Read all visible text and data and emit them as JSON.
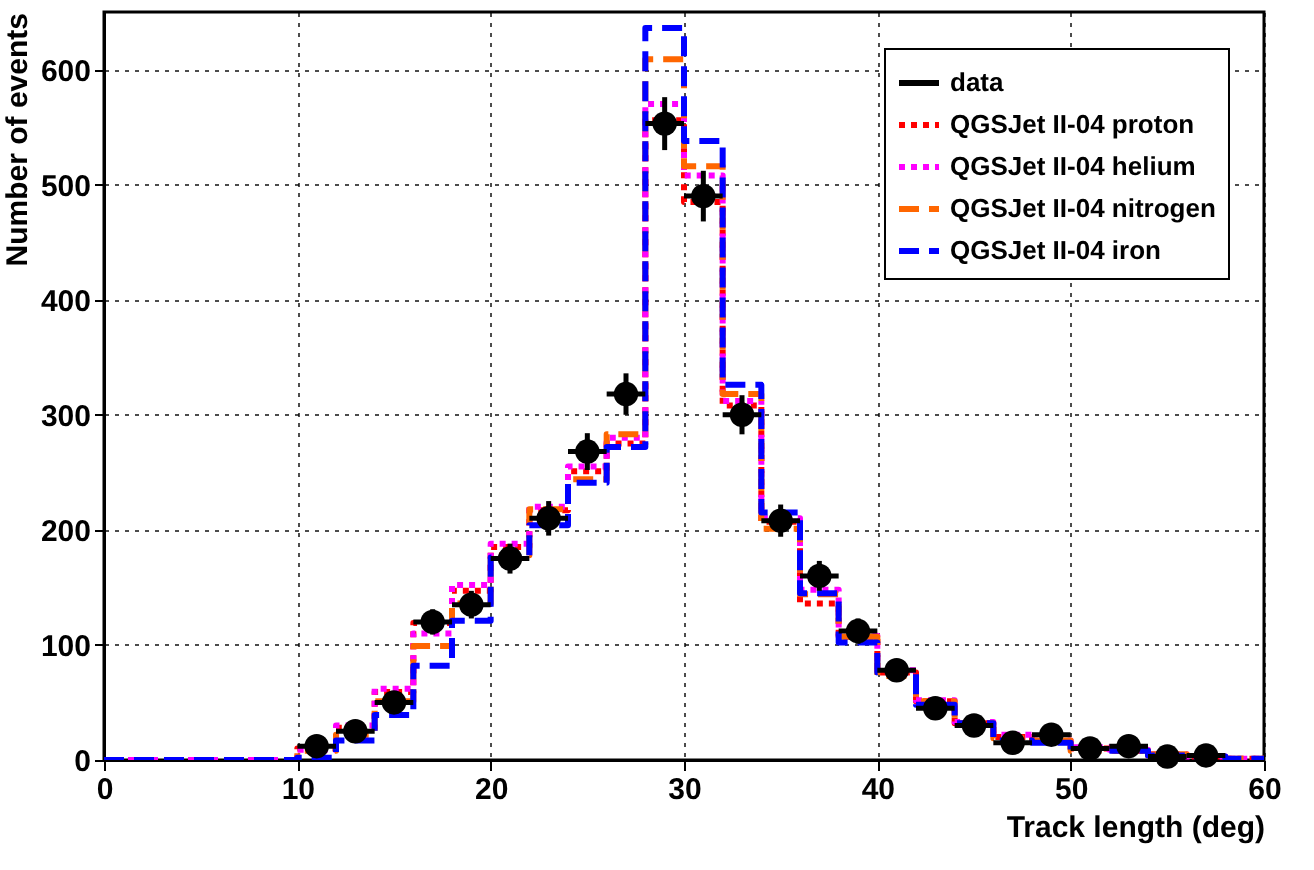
{
  "chart_data": {
    "type": "histogram",
    "xlabel": "Track length (deg)",
    "ylabel": "Number of events",
    "bins": [
      0,
      2,
      4,
      6,
      8,
      10,
      12,
      14,
      16,
      18,
      20,
      22,
      24,
      26,
      28,
      30,
      32,
      34,
      36,
      38,
      40,
      42,
      44,
      46,
      48,
      50,
      52,
      54,
      56,
      58,
      60
    ],
    "xlim": [
      0,
      60
    ],
    "xticks": [
      0,
      10,
      20,
      30,
      40,
      50,
      60
    ],
    "ylim": [
      0,
      650
    ],
    "yticks": [
      0,
      100,
      200,
      300,
      400,
      500,
      600
    ],
    "grid": true,
    "legend": "top right",
    "series": [
      {
        "name": "data",
        "type": "scatter",
        "color": "#000000",
        "marker": "circle",
        "x": [
          11,
          13,
          15,
          17,
          19,
          21,
          23,
          25,
          27,
          29,
          31,
          33,
          35,
          37,
          39,
          41,
          43,
          45,
          47,
          49,
          51,
          53,
          55,
          57
        ],
        "values": [
          12,
          25,
          50,
          120,
          135,
          175,
          210,
          268,
          318,
          553,
          490,
          300,
          208,
          160,
          112,
          78,
          45,
          30,
          15,
          22,
          10,
          12,
          3,
          4
        ],
        "errors": [
          3,
          5,
          7,
          11,
          12,
          13,
          15,
          16,
          18,
          23,
          22,
          17,
          14,
          13,
          11,
          9,
          7,
          5,
          4,
          5,
          3,
          3,
          2,
          2
        ],
        "xerrors": [
          1,
          1,
          1,
          1,
          1,
          1,
          1,
          1,
          1,
          1,
          1,
          1,
          1,
          1,
          1,
          1,
          1,
          1,
          1,
          1,
          1,
          1,
          1,
          1
        ]
      },
      {
        "name": "QGSJet II-04 proton",
        "type": "histogram",
        "color": "#ff0000",
        "line_style": "dotted",
        "values": [
          0,
          0,
          0,
          0,
          0,
          10,
          28,
          59,
          119,
          147,
          185,
          217,
          251,
          275,
          556,
          485,
          308,
          207,
          136,
          107,
          76,
          51,
          32,
          20,
          16,
          10,
          8,
          4,
          3,
          1
        ]
      },
      {
        "name": "QGSJet II-04 helium",
        "type": "histogram",
        "color": "#ff00ff",
        "line_style": "dotted",
        "values": [
          0,
          0,
          0,
          0,
          0,
          9,
          30,
          62,
          110,
          152,
          188,
          220,
          255,
          280,
          570,
          508,
          312,
          210,
          148,
          108,
          78,
          52,
          33,
          22,
          17,
          11,
          9,
          5,
          3,
          1
        ]
      },
      {
        "name": "QGSJet II-04 nitrogen",
        "type": "histogram",
        "color": "#ff6600",
        "line_style": "dashed",
        "values": [
          0,
          0,
          0,
          0,
          0,
          8,
          22,
          51,
          99,
          136,
          178,
          218,
          244,
          283,
          609,
          516,
          318,
          201,
          144,
          107,
          73,
          51,
          32,
          19,
          17,
          8,
          8,
          5,
          3,
          1
        ]
      },
      {
        "name": "QGSJet II-04 iron",
        "type": "histogram",
        "color": "#0000ff",
        "line_style": "dashed",
        "values": [
          0,
          0,
          0,
          0,
          0,
          2,
          17,
          39,
          82,
          121,
          176,
          204,
          241,
          272,
          636,
          538,
          326,
          215,
          145,
          102,
          76,
          48,
          32,
          17,
          15,
          9,
          8,
          4,
          3,
          1
        ]
      }
    ]
  }
}
